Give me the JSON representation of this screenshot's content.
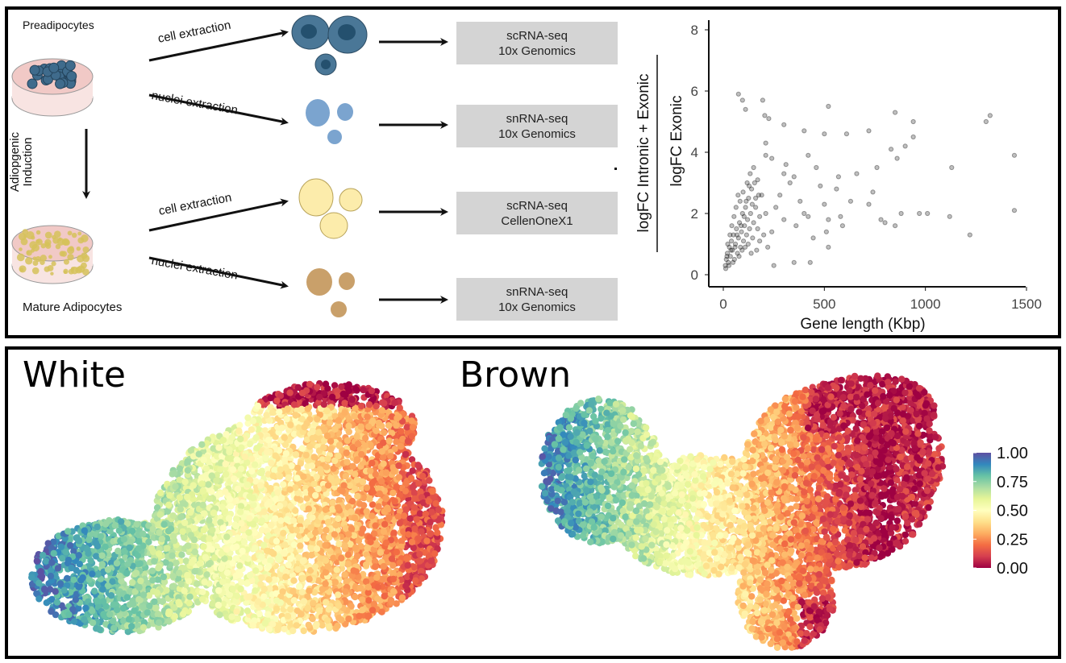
{
  "workflow": {
    "preadipocytes_label": "Preadipocytes",
    "mature_label": "Mature Adipocytes",
    "induction_label_1": "Adiopgenic",
    "induction_label_2": "Induction",
    "arrows": [
      {
        "label": "cell extraction"
      },
      {
        "label": "nuclei extraction"
      },
      {
        "label": "cell extraction"
      },
      {
        "label": "nuclei extraction"
      }
    ],
    "methods": [
      {
        "line1": "scRNA-seq",
        "line2": "10x Genomics"
      },
      {
        "line1": "snRNA-seq",
        "line2": "10x Genomics"
      },
      {
        "line1": "scRNA-seq",
        "line2": "CellenOneX1"
      },
      {
        "line1": "snRNA-seq",
        "line2": "10x Genomics"
      }
    ],
    "colors": {
      "preadipocyte": "#3f6b8c",
      "nuclei_pre": "#7aa3cf",
      "mature": "#fbeaa6",
      "nuclei_mature": "#c9a06a",
      "dish": "#f6d8d6"
    }
  },
  "chart_data": [
    {
      "type": "scatter",
      "xlabel": "Gene length (Kbp)",
      "ylabel_numerator": "logFC Intronic + Exonic",
      "ylabel_denominator": "logFC Exonic",
      "xlim": [
        0,
        1500
      ],
      "ylim": [
        0,
        8
      ],
      "xticks": [
        "0",
        "500",
        "1000",
        "1500"
      ],
      "yticks": [
        "0",
        "2",
        "4",
        "6",
        "8"
      ],
      "grid": false,
      "point_color": "#000000",
      "point_alpha": 0.25,
      "points": [
        [
          75,
          5.9
        ],
        [
          95,
          5.7
        ],
        [
          195,
          5.7
        ],
        [
          110,
          5.4
        ],
        [
          520,
          5.5
        ],
        [
          205,
          5.2
        ],
        [
          225,
          5.1
        ],
        [
          300,
          4.9
        ],
        [
          400,
          4.7
        ],
        [
          500,
          4.6
        ],
        [
          610,
          4.6
        ],
        [
          850,
          5.3
        ],
        [
          940,
          5.0
        ],
        [
          1300,
          5.0
        ],
        [
          1320,
          5.2
        ],
        [
          1440,
          3.9
        ],
        [
          1440,
          2.1
        ],
        [
          1220,
          1.3
        ],
        [
          1120,
          1.9
        ],
        [
          1010,
          2.0
        ],
        [
          970,
          2.0
        ],
        [
          900,
          4.2
        ],
        [
          940,
          4.5
        ],
        [
          860,
          3.8
        ],
        [
          830,
          4.1
        ],
        [
          760,
          3.5
        ],
        [
          720,
          4.7
        ],
        [
          660,
          3.3
        ],
        [
          630,
          2.4
        ],
        [
          720,
          2.3
        ],
        [
          740,
          2.7
        ],
        [
          880,
          2.0
        ],
        [
          800,
          1.7
        ],
        [
          780,
          1.8
        ],
        [
          850,
          1.6
        ],
        [
          1130,
          3.5
        ],
        [
          570,
          3.2
        ],
        [
          560,
          2.8
        ],
        [
          580,
          1.9
        ],
        [
          590,
          1.6
        ],
        [
          500,
          2.3
        ],
        [
          520,
          1.8
        ],
        [
          510,
          1.4
        ],
        [
          520,
          0.9
        ],
        [
          445,
          1.2
        ],
        [
          430,
          0.4
        ],
        [
          350,
          0.4
        ],
        [
          250,
          0.3
        ],
        [
          240,
          3.8
        ],
        [
          210,
          4.3
        ],
        [
          210,
          3.9
        ],
        [
          310,
          3.6
        ],
        [
          350,
          3.2
        ],
        [
          420,
          3.9
        ],
        [
          460,
          3.5
        ],
        [
          480,
          2.9
        ],
        [
          300,
          3.3
        ],
        [
          330,
          3.0
        ],
        [
          380,
          2.4
        ],
        [
          400,
          2.0
        ],
        [
          360,
          1.6
        ],
        [
          420,
          1.9
        ],
        [
          280,
          2.6
        ],
        [
          260,
          2.2
        ],
        [
          300,
          1.8
        ],
        [
          240,
          1.4
        ],
        [
          220,
          0.9
        ],
        [
          180,
          1.1
        ],
        [
          160,
          2.5
        ],
        [
          170,
          3.1
        ],
        [
          150,
          3.5
        ],
        [
          10,
          0.3
        ],
        [
          15,
          0.5
        ],
        [
          20,
          0.7
        ],
        [
          25,
          0.4
        ],
        [
          30,
          0.9
        ],
        [
          35,
          0.6
        ],
        [
          40,
          1.1
        ],
        [
          45,
          0.8
        ],
        [
          50,
          1.3
        ],
        [
          55,
          0.5
        ],
        [
          60,
          1.0
        ],
        [
          65,
          1.5
        ],
        [
          70,
          0.7
        ],
        [
          75,
          1.2
        ],
        [
          80,
          1.7
        ],
        [
          85,
          0.9
        ],
        [
          90,
          1.4
        ],
        [
          95,
          2.0
        ],
        [
          100,
          1.1
        ],
        [
          105,
          1.6
        ],
        [
          110,
          2.2
        ],
        [
          115,
          1.3
        ],
        [
          120,
          1.8
        ],
        [
          125,
          2.5
        ],
        [
          130,
          1.5
        ],
        [
          135,
          2.0
        ],
        [
          140,
          2.8
        ],
        [
          145,
          1.2
        ],
        [
          150,
          1.7
        ],
        [
          160,
          2.2
        ],
        [
          170,
          1.5
        ],
        [
          180,
          1.9
        ],
        [
          190,
          2.6
        ],
        [
          200,
          1.3
        ],
        [
          210,
          2.0
        ],
        [
          12,
          0.2
        ],
        [
          18,
          0.6
        ],
        [
          22,
          1.0
        ],
        [
          28,
          0.3
        ],
        [
          33,
          1.3
        ],
        [
          38,
          0.8
        ],
        [
          42,
          1.6
        ],
        [
          48,
          0.4
        ],
        [
          53,
          1.9
        ],
        [
          58,
          0.9
        ],
        [
          63,
          2.2
        ],
        [
          68,
          1.3
        ],
        [
          73,
          2.6
        ],
        [
          78,
          0.6
        ],
        [
          83,
          2.4
        ],
        [
          88,
          1.6
        ],
        [
          93,
          0.8
        ],
        [
          98,
          2.7
        ],
        [
          103,
          1.9
        ],
        [
          108,
          0.9
        ],
        [
          113,
          2.4
        ],
        [
          118,
          3.0
        ],
        [
          123,
          1.0
        ],
        [
          128,
          2.9
        ],
        [
          133,
          3.3
        ],
        [
          138,
          0.7
        ],
        [
          143,
          2.3
        ],
        [
          155,
          3.0
        ],
        [
          165,
          0.8
        ],
        [
          175,
          2.6
        ]
      ]
    },
    {
      "type": "scatter",
      "title": "White",
      "description_kind": "embedding"
    },
    {
      "type": "scatter",
      "title": "Brown",
      "description_kind": "embedding"
    }
  ],
  "colorbar": {
    "ticks": [
      "1.00",
      "0.75",
      "0.50",
      "0.25",
      "0.00"
    ],
    "range": [
      0,
      1
    ],
    "colors": [
      "#9E0142",
      "#D53E4F",
      "#F46D43",
      "#FDAE61",
      "#FEE08B",
      "#FFFFBF",
      "#E6F598",
      "#ABDDA4",
      "#66C2A5",
      "#3288BD",
      "#5E4FA2"
    ]
  }
}
